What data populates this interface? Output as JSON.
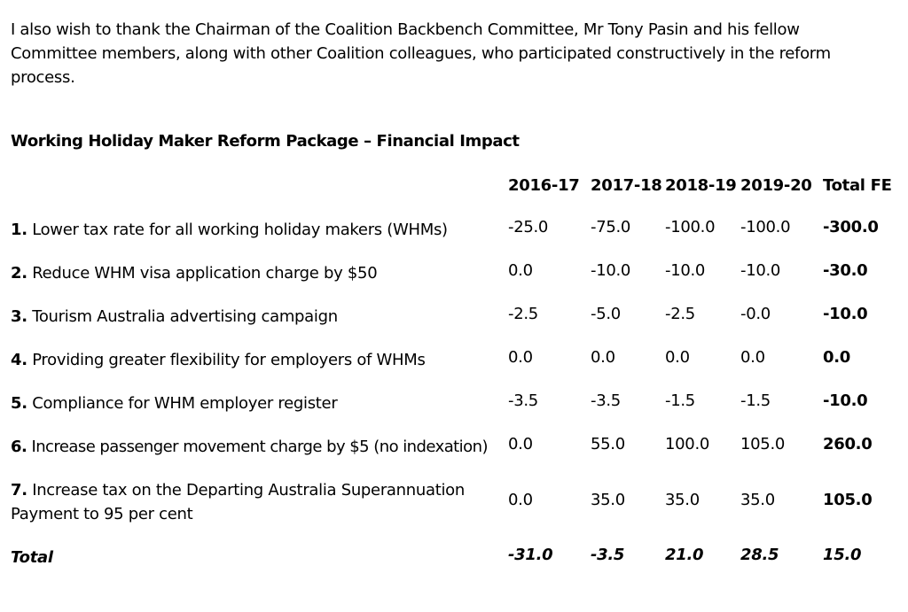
{
  "intro_text": "I also wish to thank the Chairman of the Coalition Backbench Committee, Mr Tony Pasin and his fellow Committee members, along with other Coalition colleagues, who participated constructively in the reform process.",
  "table_title": "Working Holiday Maker Reform Package – Financial Impact",
  "columns": [
    "2016-17",
    "2017-18",
    "2018-19",
    "2019-20",
    "Total FE"
  ],
  "rows": [
    {
      "num": "1.",
      "label": "Lower tax rate for all working holiday makers (WHMs)",
      "values": [
        "-25.0",
        "-75.0",
        "-100.0",
        "-100.0",
        "-300.0"
      ]
    },
    {
      "num": "2.",
      "label": "Reduce WHM visa application charge by $50",
      "values": [
        "0.0",
        "-10.0",
        "-10.0",
        "-10.0",
        "-30.0"
      ]
    },
    {
      "num": "3.",
      "label": "Tourism Australia advertising campaign",
      "values": [
        "-2.5",
        "-5.0",
        "-2.5",
        "-0.0",
        "-10.0"
      ]
    },
    {
      "num": "4.",
      "label": "Providing greater flexibility for employers of WHMs",
      "values": [
        "0.0",
        "0.0",
        "0.0",
        "0.0",
        "0.0"
      ]
    },
    {
      "num": "5.",
      "label": "Compliance for WHM employer register",
      "values": [
        "-3.5",
        "-3.5",
        "-1.5",
        "-1.5",
        "-10.0"
      ]
    },
    {
      "num": "6.",
      "label": "Increase passenger movement charge by $5 (no indexation)",
      "values": [
        "0.0",
        "55.0",
        "100.0",
        "105.0",
        "260.0"
      ]
    },
    {
      "num": "7.",
      "label": "Increase tax on the Departing Australia Superannuation Payment to 95 per cent",
      "values": [
        "0.0",
        "35.0",
        "35.0",
        "35.0",
        "105.0"
      ]
    }
  ],
  "total": {
    "label": "Total",
    "values": [
      "-31.0",
      "-3.5",
      "21.0",
      "28.5",
      "15.0"
    ]
  }
}
